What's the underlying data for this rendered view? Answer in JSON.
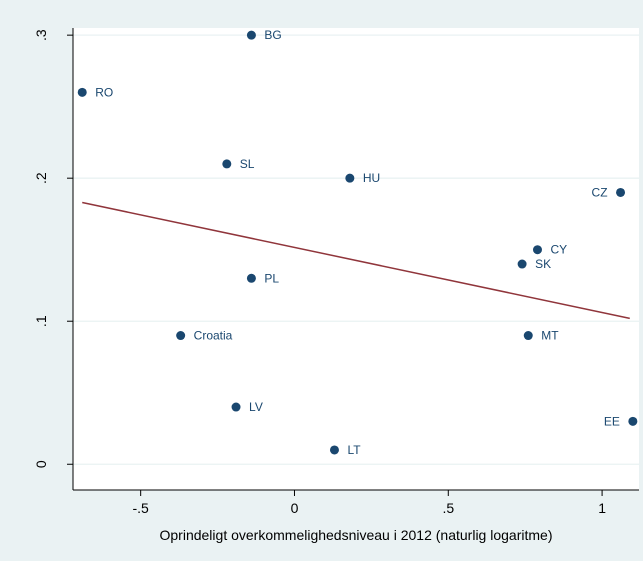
{
  "chart_data": {
    "type": "scatter",
    "title": "",
    "xlabel": "Oprindeligt overkommelighedsniveau i 2012 (naturlig logaritme)",
    "ylabel": "",
    "xlim": [
      -0.72,
      1.12
    ],
    "ylim": [
      -0.018,
      0.305
    ],
    "x_ticks": [
      -0.5,
      0,
      0.5,
      1
    ],
    "x_tick_labels": [
      "-.5",
      "0",
      ".5",
      "1"
    ],
    "y_ticks": [
      0,
      0.1,
      0.2,
      0.3
    ],
    "y_tick_labels": [
      "0",
      ".1",
      ".2",
      ".3"
    ],
    "grid": "horizontal",
    "colors": {
      "points": "#1a476f",
      "fit_line": "#90353b",
      "plot_bg": "#ffffff",
      "outer_bg": "#eaf2f3",
      "grid": "#eaf2f3"
    },
    "points": [
      {
        "label": "BG",
        "x": -0.14,
        "y": 0.3,
        "label_pos": "right"
      },
      {
        "label": "RO",
        "x": -0.69,
        "y": 0.26,
        "label_pos": "right"
      },
      {
        "label": "SL",
        "x": -0.22,
        "y": 0.21,
        "label_pos": "right"
      },
      {
        "label": "HU",
        "x": 0.18,
        "y": 0.2,
        "label_pos": "right"
      },
      {
        "label": "CZ",
        "x": 1.06,
        "y": 0.19,
        "label_pos": "left"
      },
      {
        "label": "CY",
        "x": 0.79,
        "y": 0.15,
        "label_pos": "right"
      },
      {
        "label": "SK",
        "x": 0.74,
        "y": 0.14,
        "label_pos": "right"
      },
      {
        "label": "PL",
        "x": -0.14,
        "y": 0.13,
        "label_pos": "right"
      },
      {
        "label": "Croatia",
        "x": -0.37,
        "y": 0.09,
        "label_pos": "right"
      },
      {
        "label": "MT",
        "x": 0.76,
        "y": 0.09,
        "label_pos": "right"
      },
      {
        "label": "LV",
        "x": -0.19,
        "y": 0.04,
        "label_pos": "right"
      },
      {
        "label": "EE",
        "x": 1.1,
        "y": 0.03,
        "label_pos": "left"
      },
      {
        "label": "LT",
        "x": 0.13,
        "y": 0.01,
        "label_pos": "right"
      }
    ],
    "fit_line": {
      "x": [
        -0.69,
        1.09
      ],
      "y": [
        0.183,
        0.102
      ]
    }
  }
}
